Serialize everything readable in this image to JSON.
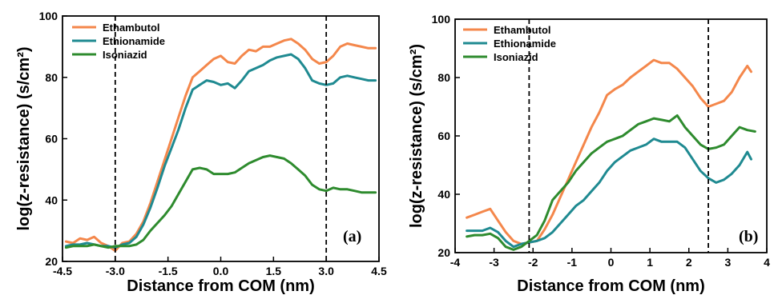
{
  "chart_data": [
    {
      "type": "line",
      "panel_label": "(a)",
      "xlabel": "Distance from COM (nm)",
      "ylabel": "log(z-resistance) (s/cm²)",
      "xlim": [
        -4.5,
        4.5
      ],
      "ylim": [
        20,
        100
      ],
      "xticks": [
        -4.5,
        -3.0,
        -1.5,
        0.0,
        1.5,
        3.0,
        4.5
      ],
      "xtick_labels": [
        "-4.5",
        "-3.0",
        "-1.5",
        "0.0",
        "1.5",
        "3.0",
        "4.5"
      ],
      "yticks": [
        20,
        40,
        60,
        80,
        100
      ],
      "ytick_labels": [
        "20",
        "40",
        "60",
        "80",
        "100"
      ],
      "legend_position": "top-left",
      "vlines": [
        -3.0,
        3.0
      ],
      "series": [
        {
          "name": "Ethambutol",
          "color": "#f4874b",
          "x": [
            -4.4,
            -4.2,
            -4.0,
            -3.8,
            -3.6,
            -3.4,
            -3.2,
            -3.0,
            -2.8,
            -2.6,
            -2.4,
            -2.2,
            -2.0,
            -1.8,
            -1.6,
            -1.4,
            -1.2,
            -1.0,
            -0.8,
            -0.6,
            -0.4,
            -0.2,
            0.0,
            0.2,
            0.4,
            0.6,
            0.8,
            1.0,
            1.2,
            1.4,
            1.6,
            1.8,
            2.0,
            2.2,
            2.4,
            2.6,
            2.8,
            3.0,
            3.2,
            3.4,
            3.6,
            3.8,
            4.0,
            4.2,
            4.4
          ],
          "values": [
            26.5,
            26,
            27.5,
            27,
            28,
            26,
            25,
            23.5,
            26,
            26.5,
            29,
            33,
            39,
            46,
            53,
            60,
            67,
            74,
            80,
            82,
            84,
            86,
            87,
            85,
            84.5,
            87,
            89,
            88.5,
            90,
            90,
            91,
            92,
            92.5,
            91,
            89,
            86,
            84.5,
            85,
            87,
            90,
            91,
            90.5,
            90,
            89.5,
            89.5
          ]
        },
        {
          "name": "Ethionamide",
          "color": "#1f8a91",
          "x": [
            -4.4,
            -4.2,
            -4.0,
            -3.8,
            -3.6,
            -3.4,
            -3.2,
            -3.0,
            -2.8,
            -2.6,
            -2.4,
            -2.2,
            -2.0,
            -1.8,
            -1.6,
            -1.4,
            -1.2,
            -1.0,
            -0.8,
            -0.6,
            -0.4,
            -0.2,
            0.0,
            0.2,
            0.4,
            0.6,
            0.8,
            1.0,
            1.2,
            1.4,
            1.6,
            1.8,
            2.0,
            2.2,
            2.4,
            2.6,
            2.8,
            3.0,
            3.2,
            3.4,
            3.6,
            3.8,
            4.0,
            4.2,
            4.4
          ],
          "values": [
            25,
            25.5,
            25.5,
            26,
            25.5,
            25,
            25,
            24.5,
            25.5,
            26,
            28,
            32,
            37.5,
            44,
            51,
            57,
            63,
            70,
            76,
            77.5,
            79,
            78.5,
            77.5,
            78,
            76.5,
            79,
            82,
            83,
            84,
            85.5,
            86.5,
            87,
            87.5,
            86,
            83,
            79,
            78,
            77.5,
            78,
            80,
            80.5,
            80,
            79.5,
            79,
            79
          ]
        },
        {
          "name": "Isoniazid",
          "color": "#2e8b2e",
          "x": [
            -4.4,
            -4.2,
            -4.0,
            -3.8,
            -3.6,
            -3.4,
            -3.2,
            -3.0,
            -2.8,
            -2.6,
            -2.4,
            -2.2,
            -2.0,
            -1.8,
            -1.6,
            -1.4,
            -1.2,
            -1.0,
            -0.8,
            -0.6,
            -0.4,
            -0.2,
            0.0,
            0.2,
            0.4,
            0.6,
            0.8,
            1.0,
            1.2,
            1.4,
            1.6,
            1.8,
            2.0,
            2.2,
            2.4,
            2.6,
            2.8,
            3.0,
            3.2,
            3.4,
            3.6,
            3.8,
            4.0,
            4.2,
            4.4
          ],
          "values": [
            24.5,
            25,
            25,
            25,
            25.5,
            25,
            24.5,
            25,
            25,
            25,
            25.5,
            27,
            30,
            32.5,
            35,
            38,
            42,
            46,
            50,
            50.5,
            50,
            48.5,
            48.5,
            48.5,
            49,
            50.5,
            52,
            53,
            54,
            54.5,
            54,
            53.5,
            52,
            50,
            48,
            45,
            43.5,
            43,
            44,
            43.5,
            43.5,
            43,
            42.5,
            42.5,
            42.5
          ]
        }
      ]
    },
    {
      "type": "line",
      "panel_label": "(b)",
      "xlabel": "Distance from COM (nm)",
      "ylabel": "log(z-resistance) (s/cm²)",
      "xlim": [
        -4,
        4
      ],
      "ylim": [
        20,
        100
      ],
      "xticks": [
        -4,
        -3,
        -2,
        -1,
        0,
        1,
        2,
        3,
        4
      ],
      "xtick_labels": [
        "-4",
        "-3",
        "-2",
        "-1",
        "0",
        "1",
        "2",
        "3",
        "4"
      ],
      "yticks": [
        20,
        40,
        60,
        80,
        100
      ],
      "ytick_labels": [
        "20",
        "40",
        "60",
        "80",
        "100"
      ],
      "legend_position": "top-left",
      "vlines": [
        -2.1,
        2.5
      ],
      "series": [
        {
          "name": "Ethambutol",
          "color": "#f4874b",
          "x": [
            -3.7,
            -3.5,
            -3.3,
            -3.1,
            -2.9,
            -2.7,
            -2.5,
            -2.3,
            -2.1,
            -1.9,
            -1.7,
            -1.5,
            -1.3,
            -1.1,
            -0.9,
            -0.7,
            -0.5,
            -0.3,
            -0.1,
            0.1,
            0.3,
            0.5,
            0.7,
            0.9,
            1.1,
            1.3,
            1.5,
            1.7,
            1.9,
            2.1,
            2.3,
            2.5,
            2.7,
            2.9,
            3.1,
            3.3,
            3.5,
            3.6
          ],
          "values": [
            32,
            33,
            34,
            35,
            31,
            27,
            24,
            23,
            23.5,
            24,
            28,
            33,
            39,
            45,
            51,
            57,
            63,
            68,
            74,
            76,
            77.5,
            80,
            82,
            84,
            86,
            85,
            85,
            83,
            80,
            77,
            73,
            70,
            71,
            72,
            75,
            80,
            84,
            82
          ]
        },
        {
          "name": "Ethionamide",
          "color": "#1f8a91",
          "x": [
            -3.7,
            -3.5,
            -3.3,
            -3.1,
            -2.9,
            -2.7,
            -2.5,
            -2.3,
            -2.1,
            -1.9,
            -1.7,
            -1.5,
            -1.3,
            -1.1,
            -0.9,
            -0.7,
            -0.5,
            -0.3,
            -0.1,
            0.1,
            0.3,
            0.5,
            0.7,
            0.9,
            1.1,
            1.3,
            1.5,
            1.7,
            1.9,
            2.1,
            2.3,
            2.5,
            2.7,
            2.9,
            3.1,
            3.3,
            3.5,
            3.6
          ],
          "values": [
            27.5,
            27.5,
            27.5,
            28.5,
            27,
            24,
            22,
            23,
            23.5,
            24,
            25,
            27,
            30,
            33,
            36,
            38,
            41,
            44,
            48,
            51,
            53,
            55,
            56,
            57,
            59,
            58,
            58,
            58,
            56,
            52,
            48,
            45.5,
            44,
            45,
            47,
            50,
            54.5,
            52
          ]
        },
        {
          "name": "Isoniazid",
          "color": "#2e8b2e",
          "x": [
            -3.7,
            -3.5,
            -3.3,
            -3.1,
            -2.9,
            -2.7,
            -2.5,
            -2.3,
            -2.1,
            -1.9,
            -1.7,
            -1.5,
            -1.3,
            -1.1,
            -0.9,
            -0.7,
            -0.5,
            -0.3,
            -0.1,
            0.1,
            0.3,
            0.5,
            0.7,
            0.9,
            1.1,
            1.3,
            1.5,
            1.7,
            1.9,
            2.1,
            2.3,
            2.5,
            2.7,
            2.9,
            3.1,
            3.3,
            3.5,
            3.7
          ],
          "values": [
            25.5,
            26,
            26,
            26.5,
            25,
            22,
            21,
            22,
            24,
            26,
            31,
            38,
            41,
            44,
            48,
            51,
            54,
            56,
            58,
            59,
            60,
            62,
            64,
            65,
            66,
            65.5,
            65,
            67,
            63,
            60,
            57,
            55.5,
            56,
            57,
            60,
            63,
            62,
            61.5
          ]
        }
      ]
    }
  ]
}
